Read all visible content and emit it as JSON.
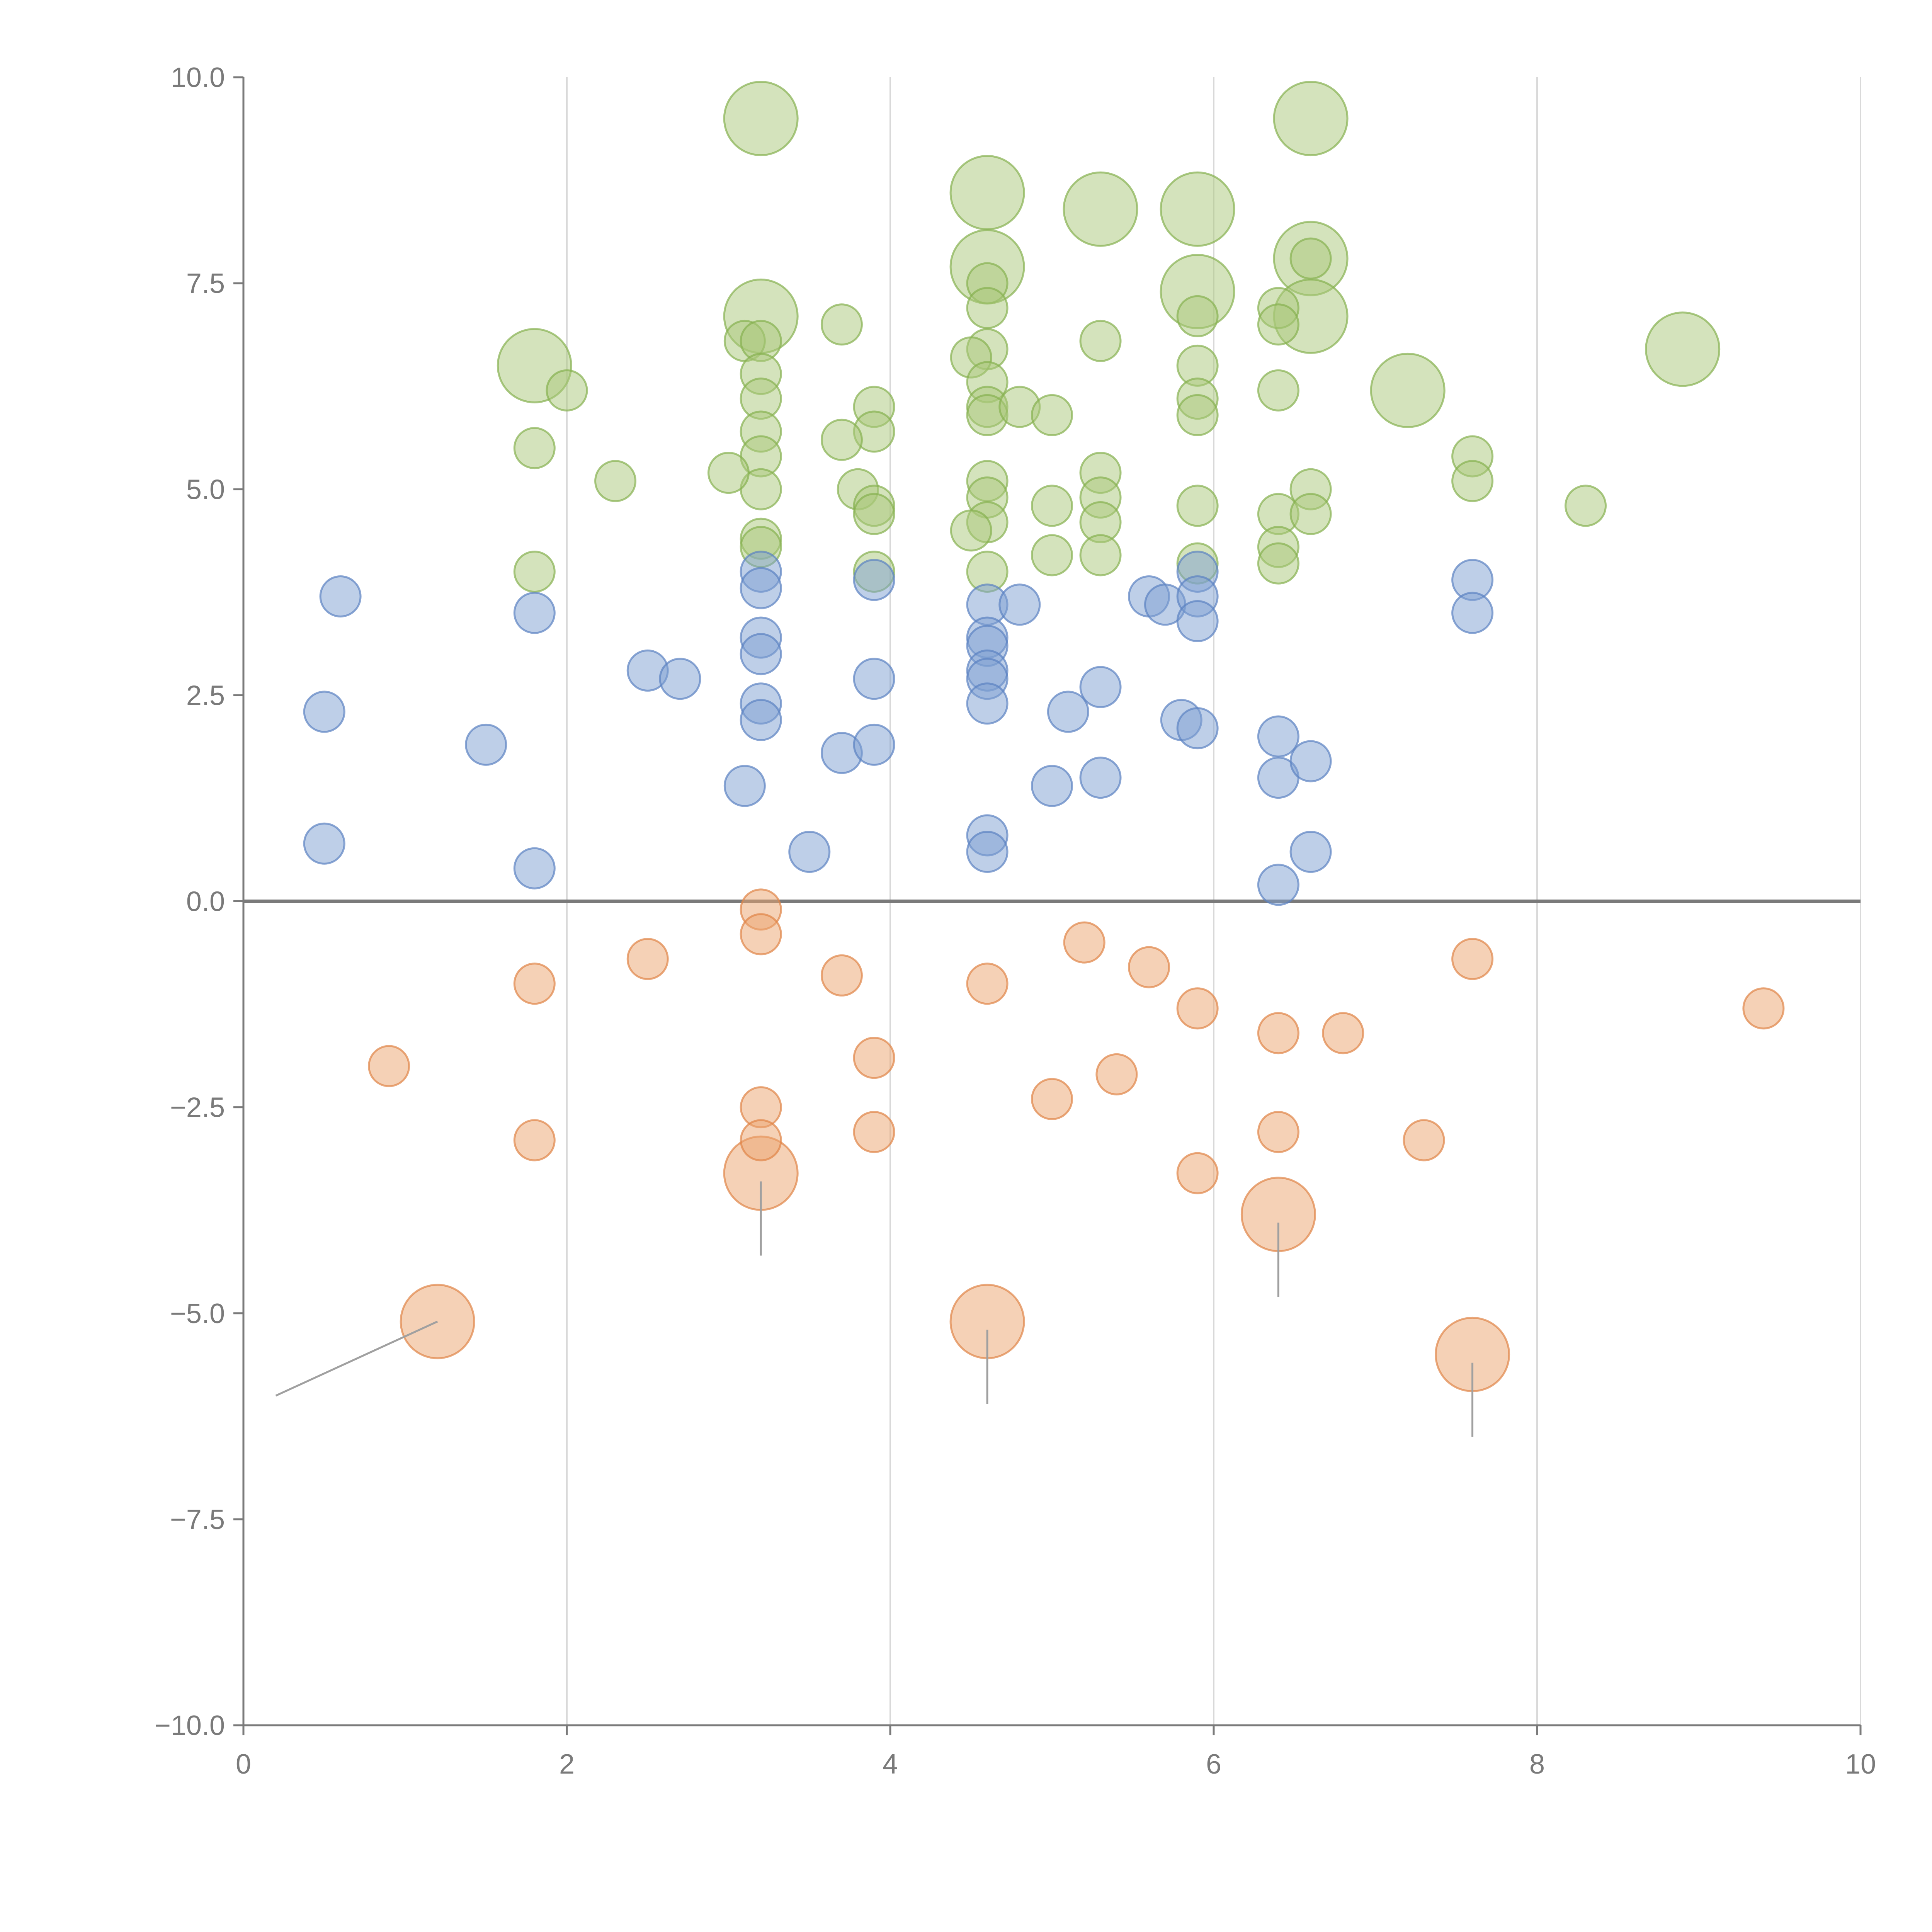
{
  "chart_data": {
    "type": "scatter",
    "title": "",
    "xlabel": "",
    "ylabel": "",
    "xlim": [
      0,
      10
    ],
    "ylim": [
      -10,
      10
    ],
    "x_ticks": [
      0,
      2,
      4,
      6,
      8,
      10
    ],
    "x_tick_labels": [
      "0",
      "2",
      "4",
      "6",
      "8",
      "10"
    ],
    "y_ticks": [
      10,
      7.5,
      5,
      2.5,
      0,
      -2.5,
      -5,
      -7.5,
      -10
    ],
    "y_tick_labels": [
      "10.0",
      "7.5",
      "5.0",
      "2.5",
      "0.0",
      "−2.5",
      "−5.0",
      "−7.5",
      "−10.0"
    ],
    "vertical_grid": true,
    "zero_line": true,
    "legend": "none",
    "colors": {
      "green": "#a9c77a",
      "green_edge": "#86b050",
      "blue": "#7e9fd2",
      "blue_edge": "#5b82c2",
      "orange": "#eba36d",
      "orange_edge": "#df8547",
      "axis": "#7a7a7a",
      "grid": "#d9d9d9",
      "leader": "#a0a0a0"
    },
    "series": [
      {
        "name": "green",
        "color_key": "green",
        "points": [
          [
            3.2,
            9.5,
            3
          ],
          [
            6.6,
            9.5,
            3
          ],
          [
            4.6,
            8.6,
            3
          ],
          [
            5.3,
            8.4,
            3
          ],
          [
            5.9,
            8.4,
            3
          ],
          [
            6.6,
            7.8,
            3
          ],
          [
            4.6,
            7.7,
            3
          ],
          [
            5.9,
            7.4,
            3
          ],
          [
            3.2,
            7.1,
            3
          ],
          [
            6.6,
            7.1,
            3
          ],
          [
            1.8,
            6.5,
            3
          ],
          [
            7.2,
            6.2,
            3
          ],
          [
            8.9,
            6.7,
            3
          ],
          [
            3.7,
            7.0,
            1
          ],
          [
            3.1,
            6.8,
            1
          ],
          [
            3.2,
            6.8,
            1
          ],
          [
            3.2,
            6.4,
            1
          ],
          [
            3.2,
            6.1,
            1
          ],
          [
            3.2,
            5.7,
            1
          ],
          [
            3.2,
            5.4,
            1
          ],
          [
            3.2,
            5.0,
            1
          ],
          [
            3.0,
            5.2,
            1
          ],
          [
            3.2,
            4.4,
            1
          ],
          [
            3.2,
            4.3,
            1
          ],
          [
            4.6,
            7.5,
            1
          ],
          [
            4.6,
            7.2,
            1
          ],
          [
            4.6,
            6.7,
            1
          ],
          [
            4.5,
            6.6,
            1
          ],
          [
            4.6,
            6.3,
            1
          ],
          [
            4.6,
            6.0,
            1
          ],
          [
            4.6,
            5.9,
            1
          ],
          [
            4.8,
            6.0,
            1
          ],
          [
            4.6,
            5.1,
            1
          ],
          [
            4.6,
            4.9,
            1
          ],
          [
            4.6,
            4.6,
            1
          ],
          [
            4.5,
            4.5,
            1
          ],
          [
            4.6,
            4.0,
            1
          ],
          [
            3.9,
            6.0,
            1
          ],
          [
            3.9,
            5.7,
            1
          ],
          [
            3.7,
            5.6,
            1
          ],
          [
            3.8,
            5.0,
            1
          ],
          [
            3.9,
            4.8,
            1
          ],
          [
            3.9,
            4.7,
            1
          ],
          [
            3.9,
            4.0,
            1
          ],
          [
            2.0,
            6.2,
            1
          ],
          [
            1.8,
            5.5,
            1
          ],
          [
            2.3,
            5.1,
            1
          ],
          [
            1.8,
            4.0,
            1
          ],
          [
            5.0,
            5.9,
            1
          ],
          [
            5.3,
            6.8,
            1
          ],
          [
            5.3,
            5.2,
            1
          ],
          [
            5.3,
            4.9,
            1
          ],
          [
            5.3,
            4.6,
            1
          ],
          [
            5.3,
            4.2,
            1
          ],
          [
            5.0,
            4.8,
            1
          ],
          [
            5.0,
            4.2,
            1
          ],
          [
            5.9,
            7.1,
            1
          ],
          [
            5.9,
            6.5,
            1
          ],
          [
            5.9,
            6.1,
            1
          ],
          [
            5.9,
            5.9,
            1
          ],
          [
            5.9,
            4.8,
            1
          ],
          [
            5.9,
            4.1,
            1
          ],
          [
            6.4,
            7.2,
            1
          ],
          [
            6.4,
            7.0,
            1
          ],
          [
            6.4,
            6.2,
            1
          ],
          [
            6.6,
            5.0,
            1
          ],
          [
            6.4,
            4.7,
            1
          ],
          [
            6.6,
            4.7,
            1
          ],
          [
            6.4,
            4.3,
            1
          ],
          [
            6.4,
            4.1,
            1
          ],
          [
            6.6,
            7.8,
            1
          ],
          [
            7.6,
            5.4,
            1
          ],
          [
            7.6,
            5.1,
            1
          ],
          [
            8.3,
            4.8,
            1
          ]
        ]
      },
      {
        "name": "blue",
        "color_key": "blue",
        "points": [
          [
            0.6,
            3.7,
            1
          ],
          [
            0.5,
            2.3,
            1
          ],
          [
            0.5,
            0.7,
            1
          ],
          [
            1.5,
            1.9,
            1
          ],
          [
            1.8,
            3.5,
            1
          ],
          [
            1.8,
            0.4,
            1
          ],
          [
            2.5,
            2.8,
            1
          ],
          [
            2.7,
            2.7,
            1
          ],
          [
            3.1,
            1.4,
            1
          ],
          [
            3.2,
            4.0,
            1
          ],
          [
            3.2,
            3.8,
            1
          ],
          [
            3.2,
            3.2,
            1
          ],
          [
            3.2,
            3.0,
            1
          ],
          [
            3.2,
            2.4,
            1
          ],
          [
            3.2,
            2.2,
            1
          ],
          [
            3.5,
            0.6,
            1
          ],
          [
            3.7,
            1.8,
            1
          ],
          [
            3.9,
            1.9,
            1
          ],
          [
            3.9,
            2.7,
            1
          ],
          [
            3.9,
            3.9,
            1
          ],
          [
            4.6,
            3.6,
            1
          ],
          [
            4.8,
            3.6,
            1
          ],
          [
            4.6,
            3.2,
            1
          ],
          [
            4.6,
            3.1,
            1
          ],
          [
            4.6,
            2.8,
            1
          ],
          [
            4.6,
            2.7,
            1
          ],
          [
            4.6,
            2.4,
            1
          ],
          [
            4.6,
            0.8,
            1
          ],
          [
            4.6,
            0.6,
            1
          ],
          [
            5.0,
            1.4,
            1
          ],
          [
            5.1,
            2.3,
            1
          ],
          [
            5.3,
            2.6,
            1
          ],
          [
            5.3,
            1.5,
            1
          ],
          [
            5.6,
            3.7,
            1
          ],
          [
            5.7,
            3.6,
            1
          ],
          [
            5.8,
            2.2,
            1
          ],
          [
            5.9,
            4.0,
            1
          ],
          [
            5.9,
            3.7,
            1
          ],
          [
            5.9,
            3.4,
            1
          ],
          [
            5.9,
            2.1,
            1
          ],
          [
            6.4,
            2.0,
            1
          ],
          [
            6.4,
            1.5,
            1
          ],
          [
            6.6,
            1.7,
            1
          ],
          [
            6.4,
            0.2,
            1
          ],
          [
            6.6,
            0.6,
            1
          ],
          [
            7.6,
            3.9,
            1
          ],
          [
            7.6,
            3.5,
            1
          ]
        ]
      },
      {
        "name": "orange",
        "color_key": "orange",
        "points": [
          [
            1.2,
            -5.1,
            3
          ],
          [
            3.2,
            -3.3,
            3
          ],
          [
            4.6,
            -5.1,
            3
          ],
          [
            6.4,
            -3.8,
            3
          ],
          [
            7.6,
            -5.5,
            3
          ],
          [
            3.2,
            -0.1,
            1
          ],
          [
            3.2,
            -0.4,
            1
          ],
          [
            2.5,
            -0.7,
            1
          ],
          [
            1.8,
            -1.0,
            1
          ],
          [
            0.9,
            -2.0,
            1
          ],
          [
            1.8,
            -2.9,
            1
          ],
          [
            3.7,
            -0.9,
            1
          ],
          [
            3.9,
            -1.9,
            1
          ],
          [
            3.9,
            -2.8,
            1
          ],
          [
            3.2,
            -2.5,
            1
          ],
          [
            3.2,
            -2.9,
            1
          ],
          [
            4.6,
            -1.0,
            1
          ],
          [
            5.2,
            -0.5,
            1
          ],
          [
            5.6,
            -0.8,
            1
          ],
          [
            5.9,
            -1.3,
            1
          ],
          [
            5.0,
            -2.4,
            1
          ],
          [
            5.4,
            -2.1,
            1
          ],
          [
            6.4,
            -1.6,
            1
          ],
          [
            6.8,
            -1.6,
            1
          ],
          [
            6.4,
            -2.8,
            1
          ],
          [
            5.9,
            -3.3,
            1
          ],
          [
            7.6,
            -0.7,
            1
          ],
          [
            7.3,
            -2.9,
            1
          ],
          [
            9.4,
            -1.3,
            1
          ]
        ]
      }
    ],
    "leader_lines": [
      {
        "from": [
          1.2,
          -5.1
        ],
        "to": [
          0.2,
          -6.0
        ]
      },
      {
        "from": [
          3.2,
          -3.4
        ],
        "to": [
          3.2,
          -4.3
        ]
      },
      {
        "from": [
          4.6,
          -5.2
        ],
        "to": [
          4.6,
          -6.1
        ]
      },
      {
        "from": [
          6.4,
          -3.9
        ],
        "to": [
          6.4,
          -4.8
        ]
      },
      {
        "from": [
          7.6,
          -5.6
        ],
        "to": [
          7.6,
          -6.5
        ]
      }
    ]
  }
}
